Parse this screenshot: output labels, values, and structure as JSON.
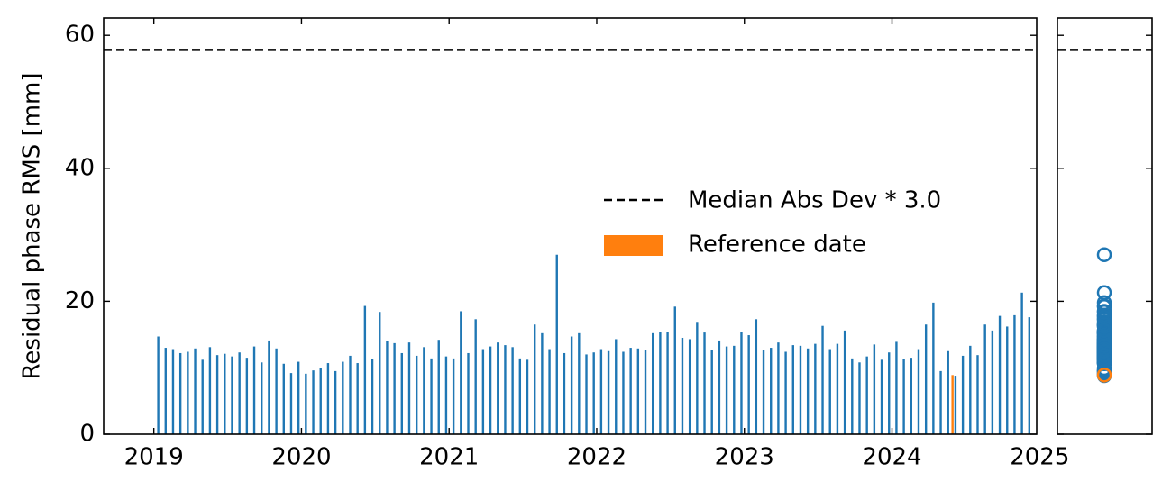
{
  "chart_data": {
    "type": "bar",
    "y_label": "Residual phase RMS [mm]",
    "x": [
      2019.03,
      2019.08,
      2019.13,
      2019.18,
      2019.23,
      2019.28,
      2019.33,
      2019.38,
      2019.43,
      2019.48,
      2019.53,
      2019.58,
      2019.63,
      2019.68,
      2019.73,
      2019.78,
      2019.83,
      2019.88,
      2019.93,
      2019.98,
      2020.03,
      2020.08,
      2020.13,
      2020.18,
      2020.23,
      2020.28,
      2020.33,
      2020.38,
      2020.43,
      2020.48,
      2020.53,
      2020.58,
      2020.63,
      2020.68,
      2020.73,
      2020.78,
      2020.83,
      2020.88,
      2020.93,
      2020.98,
      2021.03,
      2021.08,
      2021.13,
      2021.18,
      2021.23,
      2021.28,
      2021.33,
      2021.38,
      2021.43,
      2021.48,
      2021.53,
      2021.58,
      2021.63,
      2021.68,
      2021.73,
      2021.78,
      2021.83,
      2021.88,
      2021.93,
      2021.98,
      2022.03,
      2022.08,
      2022.13,
      2022.18,
      2022.23,
      2022.28,
      2022.33,
      2022.38,
      2022.43,
      2022.48,
      2022.53,
      2022.58,
      2022.63,
      2022.68,
      2022.73,
      2022.78,
      2022.83,
      2022.88,
      2022.93,
      2022.98,
      2023.03,
      2023.08,
      2023.13,
      2023.18,
      2023.23,
      2023.28,
      2023.33,
      2023.38,
      2023.43,
      2023.48,
      2023.53,
      2023.58,
      2023.63,
      2023.68,
      2023.73,
      2023.78,
      2023.83,
      2023.88,
      2023.93,
      2023.98,
      2024.03,
      2024.08,
      2024.13,
      2024.18,
      2024.23,
      2024.28,
      2024.33,
      2024.38,
      2024.43,
      2024.48,
      2024.53,
      2024.58,
      2024.63,
      2024.68,
      2024.73,
      2024.78,
      2024.83,
      2024.88,
      2024.93
    ],
    "values": [
      14.7,
      13,
      12.8,
      12.2,
      12.4,
      12.9,
      11.2,
      13.1,
      11.9,
      12.1,
      11.7,
      12.3,
      11.5,
      13.2,
      10.8,
      14.1,
      12.9,
      10.6,
      9.2,
      10.9,
      9.1,
      9.6,
      9.9,
      10.7,
      9.5,
      10.9,
      11.8,
      10.7,
      19.3,
      11.3,
      18.4,
      14,
      13.7,
      12.2,
      13.8,
      11.8,
      13.1,
      11.4,
      14.2,
      11.7,
      11.4,
      18.5,
      12.2,
      17.3,
      12.8,
      13.2,
      13.8,
      13.4,
      13.1,
      11.4,
      11.2,
      16.5,
      15.2,
      12.8,
      27,
      12.2,
      14.7,
      15.2,
      12,
      12.3,
      12.8,
      12.5,
      14.3,
      12.4,
      13,
      12.9,
      12.7,
      15.2,
      15.4,
      15.4,
      19.2,
      14.5,
      14.3,
      16.9,
      15.3,
      12.7,
      14.1,
      13.2,
      13.3,
      15.4,
      14.9,
      17.3,
      12.7,
      13,
      13.8,
      12.4,
      13.4,
      13.3,
      12.9,
      13.6,
      16.3,
      12.8,
      13.6,
      15.6,
      11.4,
      10.8,
      11.7,
      13.5,
      11.2,
      12.3,
      13.9,
      11.3,
      11.5,
      12.8,
      16.5,
      19.8,
      9.5,
      12.5,
      8.8,
      11.8,
      13.3,
      11.9,
      16.5,
      15.6,
      17.8,
      16.2,
      17.9,
      21.3,
      17.6
    ],
    "color": "#1f77b4",
    "reference": {
      "name": "Reference date",
      "x": 2024.41,
      "value": 8.9,
      "color": "#ff7f0e"
    },
    "threshold": {
      "name": "Median Abs Dev * 3.0",
      "value": 57.8,
      "color": "#000000"
    },
    "xlim": [
      2018.66,
      2024.98
    ],
    "xticks": [
      2019,
      2020,
      2021,
      2022,
      2023,
      2024,
      2025
    ],
    "ylim": [
      0,
      62.6
    ],
    "yticks": [
      0,
      20,
      40,
      60
    ]
  }
}
